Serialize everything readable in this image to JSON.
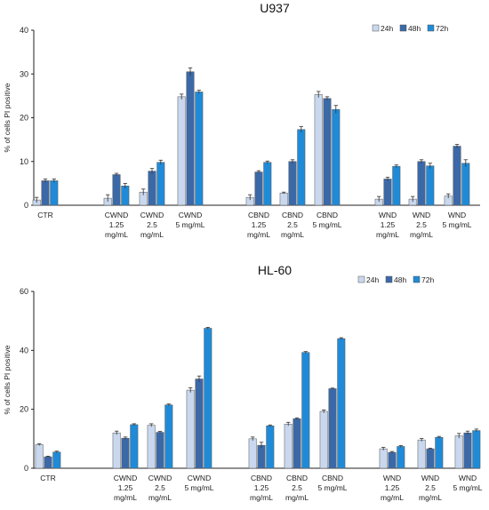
{
  "colors": {
    "s24h": "#c9d8ee",
    "s48h": "#3b69a8",
    "s72h": "#1f8bd8",
    "bar_stroke": "#555555",
    "axis": "#222222",
    "error": "#333333"
  },
  "chart_data": [
    {
      "type": "bar",
      "title": "U937",
      "ylabel": "% of cells PI positive",
      "xlabel": "",
      "ylim": [
        0,
        40
      ],
      "yticks": [
        0,
        10,
        20,
        30,
        40
      ],
      "grid": false,
      "legend_position": "top-right",
      "categories": [
        [
          "CTR"
        ],
        [
          "CWND",
          "1.25",
          "mg/mL"
        ],
        [
          "CWND",
          "2.5",
          "mg/mL"
        ],
        [
          "CWND",
          "5 mg/mL"
        ],
        [
          "CBND",
          "1.25",
          "mg/mL"
        ],
        [
          "CBND",
          "2.5",
          "mg/mL"
        ],
        [
          "CBND",
          "5 mg/mL"
        ],
        [
          "WND",
          "1.25",
          "mg/mL"
        ],
        [
          "WND",
          "2.5",
          "mg/mL"
        ],
        [
          "WND",
          "5 mg/mL"
        ]
      ],
      "series": [
        {
          "name": "24h",
          "values": [
            1.2,
            1.6,
            3.0,
            24.8,
            1.8,
            2.8,
            25.3,
            1.4,
            1.4,
            2.1
          ],
          "errors": [
            0.6,
            0.8,
            0.7,
            0.6,
            0.6,
            0.2,
            0.7,
            0.6,
            0.6,
            0.5
          ]
        },
        {
          "name": "48h",
          "values": [
            5.6,
            7.0,
            7.8,
            30.5,
            7.6,
            10.0,
            24.4,
            6.0,
            10.0,
            13.5
          ],
          "errors": [
            0.4,
            0.3,
            0.6,
            0.9,
            0.3,
            0.4,
            0.4,
            0.4,
            0.4,
            0.4
          ]
        },
        {
          "name": "72h",
          "values": [
            5.6,
            4.4,
            9.8,
            25.9,
            9.8,
            17.3,
            21.9,
            8.9,
            9.0,
            9.6
          ],
          "errors": [
            0.4,
            0.6,
            0.5,
            0.4,
            0.3,
            0.7,
            0.9,
            0.3,
            0.6,
            0.8
          ]
        }
      ]
    },
    {
      "type": "bar",
      "title": "HL-60",
      "ylabel": "% of cells PI positive",
      "xlabel": "",
      "ylim": [
        0,
        60
      ],
      "yticks": [
        0,
        20,
        40,
        60
      ],
      "grid": false,
      "legend_position": "top-right",
      "categories": [
        [
          "CTR"
        ],
        [
          "CWND",
          "1.25",
          "mg/mL"
        ],
        [
          "CWND",
          "2.5",
          "mg/mL"
        ],
        [
          "CWND",
          "5 mg/mL"
        ],
        [
          "CBND",
          "1.25",
          "mg/mL"
        ],
        [
          "CBND",
          "2.5",
          "mg/mL"
        ],
        [
          "CBND",
          "5 mg/mL"
        ],
        [
          "WND",
          "1.25",
          "mg/mL"
        ],
        [
          "WND",
          "2.5",
          "mg/mL"
        ],
        [
          "WND",
          "5 mg/mL"
        ]
      ],
      "series": [
        {
          "name": "24h",
          "values": [
            8.0,
            12.0,
            14.6,
            26.5,
            10.0,
            15.0,
            19.3,
            6.6,
            9.6,
            11.0
          ],
          "errors": [
            0.3,
            0.6,
            0.5,
            0.8,
            0.6,
            0.6,
            0.5,
            0.5,
            0.5,
            0.8
          ]
        },
        {
          "name": "48h",
          "values": [
            3.9,
            10.2,
            12.2,
            30.3,
            7.8,
            16.8,
            27.0,
            5.4,
            6.6,
            12.0
          ],
          "errors": [
            0.2,
            0.4,
            0.3,
            1.0,
            1.0,
            0.3,
            0.2,
            0.3,
            0.2,
            0.6
          ]
        },
        {
          "name": "72h",
          "values": [
            5.5,
            14.8,
            21.5,
            47.5,
            14.4,
            39.3,
            44.0,
            7.4,
            10.5,
            12.8
          ],
          "errors": [
            0.3,
            0.3,
            0.3,
            0.3,
            0.3,
            0.3,
            0.3,
            0.3,
            0.3,
            0.5
          ]
        }
      ]
    }
  ]
}
